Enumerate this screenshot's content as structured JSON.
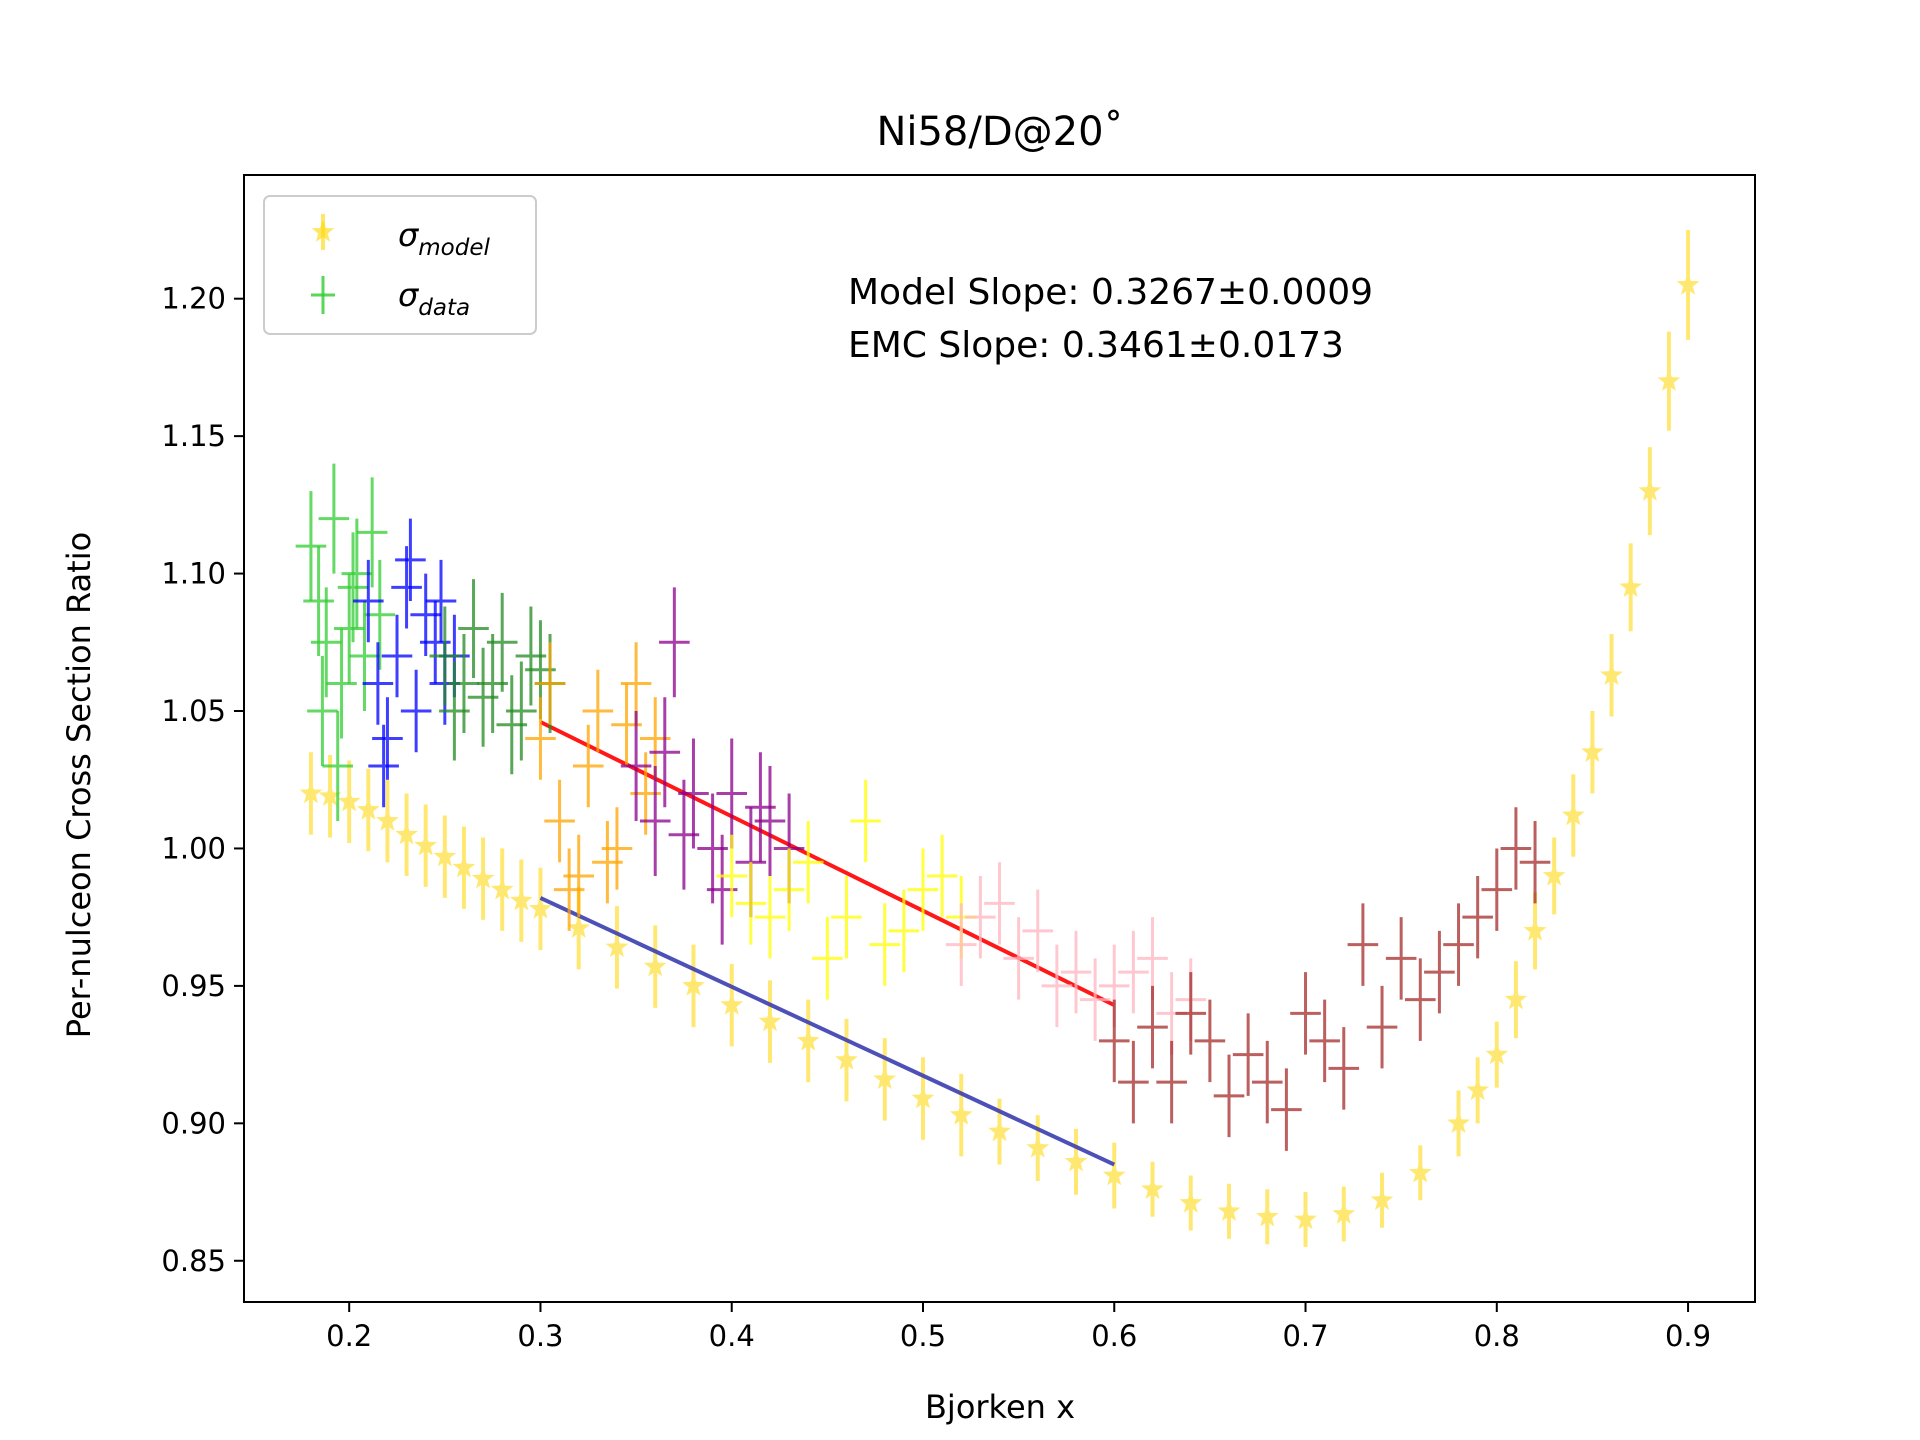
{
  "chart_data": {
    "type": "scatter",
    "title": "Ni58/D@20˚",
    "xlabel": "Bjorken x",
    "ylabel": "Per-nulceon Cross Section Ratio",
    "xlim": [
      0.145,
      0.935
    ],
    "ylim": [
      0.835,
      1.245
    ],
    "xticks": [
      "0.2",
      "0.3",
      "0.4",
      "0.5",
      "0.6",
      "0.7",
      "0.8",
      "0.9"
    ],
    "yticks": [
      "0.85",
      "0.90",
      "0.95",
      "1.00",
      "1.05",
      "1.10",
      "1.15",
      "1.20"
    ],
    "grid": false,
    "legend_position": "top-left",
    "legend": [
      {
        "symbol": "σ",
        "sub": "model",
        "marker": "star",
        "color": "#FFD700"
      },
      {
        "symbol": "σ",
        "sub": "data",
        "marker": "plus",
        "color": "#32CD32"
      }
    ],
    "annotations": [
      "Model Slope: 0.3267±0.0009",
      "EMC Slope: 0.3461±0.0173"
    ],
    "model_series": {
      "name": "σ_model",
      "color": "#FFD700",
      "x": [
        0.18,
        0.19,
        0.2,
        0.21,
        0.22,
        0.23,
        0.24,
        0.25,
        0.26,
        0.27,
        0.28,
        0.29,
        0.3,
        0.32,
        0.34,
        0.36,
        0.38,
        0.4,
        0.42,
        0.44,
        0.46,
        0.48,
        0.5,
        0.52,
        0.54,
        0.56,
        0.58,
        0.6,
        0.62,
        0.64,
        0.66,
        0.68,
        0.7,
        0.72,
        0.74,
        0.76,
        0.78,
        0.79,
        0.8,
        0.81,
        0.82,
        0.83,
        0.84,
        0.85,
        0.86,
        0.87,
        0.88,
        0.89,
        0.9
      ],
      "y": [
        1.02,
        1.019,
        1.017,
        1.014,
        1.01,
        1.005,
        1.001,
        0.997,
        0.993,
        0.989,
        0.985,
        0.981,
        0.978,
        0.971,
        0.964,
        0.957,
        0.95,
        0.943,
        0.937,
        0.93,
        0.923,
        0.916,
        0.909,
        0.903,
        0.897,
        0.891,
        0.886,
        0.881,
        0.876,
        0.871,
        0.868,
        0.866,
        0.865,
        0.867,
        0.872,
        0.882,
        0.9,
        0.912,
        0.925,
        0.945,
        0.97,
        0.99,
        1.012,
        1.035,
        1.063,
        1.095,
        1.13,
        1.17,
        1.205
      ],
      "yerr": [
        0.015,
        0.015,
        0.015,
        0.015,
        0.015,
        0.015,
        0.015,
        0.015,
        0.015,
        0.015,
        0.015,
        0.015,
        0.015,
        0.015,
        0.015,
        0.015,
        0.015,
        0.015,
        0.015,
        0.015,
        0.015,
        0.015,
        0.015,
        0.015,
        0.012,
        0.012,
        0.012,
        0.012,
        0.01,
        0.01,
        0.01,
        0.01,
        0.01,
        0.01,
        0.01,
        0.01,
        0.012,
        0.012,
        0.012,
        0.014,
        0.014,
        0.014,
        0.015,
        0.015,
        0.015,
        0.016,
        0.016,
        0.018,
        0.02
      ]
    },
    "data_series": [
      {
        "color": "#32CD32",
        "x": [
          0.18,
          0.184,
          0.188,
          0.192,
          0.196,
          0.2,
          0.204,
          0.208,
          0.212,
          0.216,
          0.186,
          0.194,
          0.202
        ],
        "y": [
          1.11,
          1.09,
          1.075,
          1.12,
          1.06,
          1.08,
          1.1,
          1.07,
          1.115,
          1.085,
          1.05,
          1.03,
          1.095
        ],
        "yerr": [
          0.02,
          0.02,
          0.02,
          0.02,
          0.02,
          0.02,
          0.02,
          0.02,
          0.02,
          0.02,
          0.02,
          0.02,
          0.02
        ]
      },
      {
        "color": "#0000FF",
        "x": [
          0.21,
          0.215,
          0.22,
          0.225,
          0.23,
          0.235,
          0.24,
          0.245,
          0.25,
          0.255,
          0.218,
          0.232,
          0.248
        ],
        "y": [
          1.09,
          1.06,
          1.04,
          1.07,
          1.095,
          1.05,
          1.085,
          1.075,
          1.06,
          1.07,
          1.03,
          1.105,
          1.09
        ],
        "yerr": [
          0.015,
          0.015,
          0.015,
          0.015,
          0.015,
          0.015,
          0.015,
          0.015,
          0.015,
          0.015,
          0.015,
          0.015,
          0.015
        ]
      },
      {
        "color": "#228B22",
        "x": [
          0.25,
          0.26,
          0.27,
          0.28,
          0.29,
          0.3,
          0.255,
          0.265,
          0.275,
          0.285,
          0.295,
          0.305
        ],
        "y": [
          1.07,
          1.06,
          1.055,
          1.075,
          1.05,
          1.065,
          1.05,
          1.08,
          1.06,
          1.045,
          1.07,
          1.06
        ],
        "yerr": [
          0.018,
          0.018,
          0.018,
          0.018,
          0.018,
          0.018,
          0.018,
          0.018,
          0.018,
          0.018,
          0.018,
          0.018
        ]
      },
      {
        "color": "#FFA500",
        "x": [
          0.3,
          0.31,
          0.32,
          0.33,
          0.34,
          0.35,
          0.36,
          0.305,
          0.315,
          0.325,
          0.335,
          0.345,
          0.355
        ],
        "y": [
          1.04,
          1.01,
          0.99,
          1.05,
          1.0,
          1.06,
          1.04,
          1.06,
          0.985,
          1.03,
          0.995,
          1.045,
          1.02
        ],
        "yerr": [
          0.015,
          0.015,
          0.015,
          0.015,
          0.015,
          0.015,
          0.015,
          0.015,
          0.015,
          0.015,
          0.015,
          0.015,
          0.015
        ]
      },
      {
        "color": "#8B008B",
        "x": [
          0.35,
          0.36,
          0.37,
          0.38,
          0.39,
          0.4,
          0.41,
          0.42,
          0.43,
          0.365,
          0.375,
          0.395,
          0.415
        ],
        "y": [
          1.03,
          1.01,
          1.075,
          1.02,
          1.0,
          1.02,
          0.995,
          1.01,
          1.0,
          1.035,
          1.005,
          0.985,
          1.015
        ],
        "yerr": [
          0.02,
          0.02,
          0.02,
          0.02,
          0.02,
          0.02,
          0.02,
          0.02,
          0.02,
          0.02,
          0.02,
          0.02,
          0.02
        ]
      },
      {
        "color": "#FFFF00",
        "x": [
          0.4,
          0.42,
          0.44,
          0.46,
          0.48,
          0.5,
          0.52,
          0.41,
          0.43,
          0.45,
          0.47,
          0.49,
          0.51
        ],
        "y": [
          0.99,
          0.975,
          0.995,
          0.975,
          0.965,
          0.985,
          0.975,
          0.98,
          0.985,
          0.96,
          1.01,
          0.97,
          0.99
        ],
        "yerr": [
          0.015,
          0.015,
          0.015,
          0.015,
          0.015,
          0.015,
          0.015,
          0.015,
          0.015,
          0.015,
          0.015,
          0.015,
          0.015
        ]
      },
      {
        "color": "#FFB6C1",
        "x": [
          0.52,
          0.54,
          0.56,
          0.58,
          0.6,
          0.62,
          0.64,
          0.53,
          0.55,
          0.57,
          0.59,
          0.61,
          0.63
        ],
        "y": [
          0.965,
          0.98,
          0.97,
          0.955,
          0.95,
          0.96,
          0.945,
          0.975,
          0.96,
          0.95,
          0.945,
          0.955,
          0.94
        ],
        "yerr": [
          0.015,
          0.015,
          0.015,
          0.015,
          0.015,
          0.015,
          0.015,
          0.015,
          0.015,
          0.015,
          0.015,
          0.015,
          0.015
        ]
      },
      {
        "color": "#A52A2A",
        "x": [
          0.6,
          0.61,
          0.62,
          0.63,
          0.64,
          0.65,
          0.66,
          0.67,
          0.68,
          0.69,
          0.7,
          0.71,
          0.72,
          0.73,
          0.74,
          0.75,
          0.76,
          0.77,
          0.78,
          0.79,
          0.8,
          0.81,
          0.82
        ],
        "y": [
          0.93,
          0.915,
          0.935,
          0.915,
          0.94,
          0.93,
          0.91,
          0.925,
          0.915,
          0.905,
          0.94,
          0.93,
          0.92,
          0.965,
          0.935,
          0.96,
          0.945,
          0.955,
          0.965,
          0.975,
          0.985,
          1.0,
          0.995
        ],
        "yerr": [
          0.015,
          0.015,
          0.015,
          0.015,
          0.015,
          0.015,
          0.015,
          0.015,
          0.015,
          0.015,
          0.015,
          0.015,
          0.015,
          0.015,
          0.015,
          0.015,
          0.015,
          0.015,
          0.015,
          0.015,
          0.015,
          0.015,
          0.015
        ]
      }
    ],
    "fit_lines": [
      {
        "name": "EMC fit",
        "color": "#FF0000",
        "x": [
          0.3,
          0.6
        ],
        "y": [
          1.046,
          0.943
        ]
      },
      {
        "name": "Model fit",
        "color": "#3A3FB0",
        "x": [
          0.3,
          0.6
        ],
        "y": [
          0.982,
          0.885
        ]
      }
    ]
  }
}
